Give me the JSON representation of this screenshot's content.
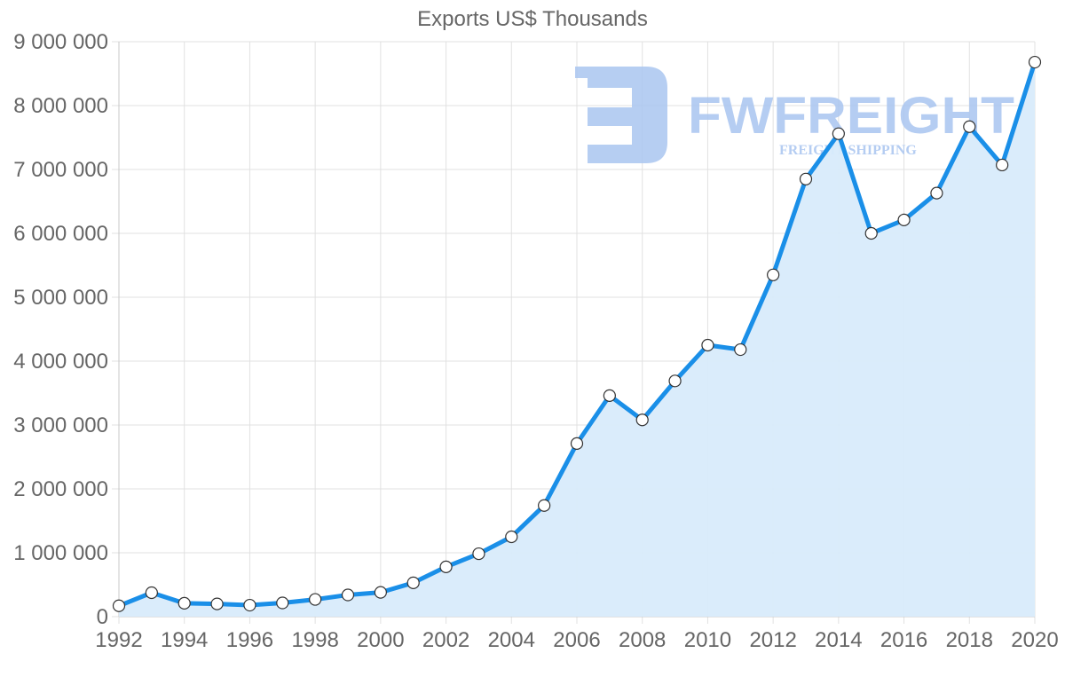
{
  "chart_data": {
    "type": "line",
    "title": "Exports US$ Thousands",
    "xlabel": "",
    "ylabel": "",
    "ylim": [
      0,
      9000000
    ],
    "xlim": [
      1992,
      2020
    ],
    "grid": true,
    "legend": null,
    "area_fill": true,
    "x": [
      1992,
      1993,
      1994,
      1995,
      1996,
      1997,
      1998,
      1999,
      2000,
      2001,
      2002,
      2003,
      2004,
      2005,
      2006,
      2007,
      2008,
      2009,
      2010,
      2011,
      2012,
      2013,
      2014,
      2015,
      2016,
      2017,
      2018,
      2019,
      2020
    ],
    "series": [
      {
        "name": "Exports US$ Thousands",
        "values": [
          170000,
          375000,
          210000,
          200000,
          180000,
          215000,
          270000,
          340000,
          380000,
          530000,
          780000,
          985000,
          1250000,
          1740000,
          2710000,
          3460000,
          3080000,
          3690000,
          4250000,
          4180000,
          5350000,
          6850000,
          7560000,
          6000000,
          6210000,
          6630000,
          7670000,
          7070000,
          8680000
        ]
      }
    ],
    "y_ticks": [
      "0",
      "1 000 000",
      "2 000 000",
      "3 000 000",
      "4 000 000",
      "5 000 000",
      "6 000 000",
      "7 000 000",
      "8 000 000",
      "9 000 000"
    ],
    "x_ticks": [
      "1992",
      "1994",
      "1996",
      "1998",
      "2000",
      "2002",
      "2004",
      "2006",
      "2008",
      "2010",
      "2012",
      "2014",
      "2016",
      "2018",
      "2020"
    ]
  },
  "watermark": {
    "brand": "FWFREIGHT",
    "tagline": "FREIGHT SHIPPING"
  },
  "colors": {
    "line": "#1a8fe8",
    "fill": "#d8ebfb",
    "grid": "#e1e1e1",
    "text": "#666666",
    "watermark": "#a9c5f0"
  }
}
